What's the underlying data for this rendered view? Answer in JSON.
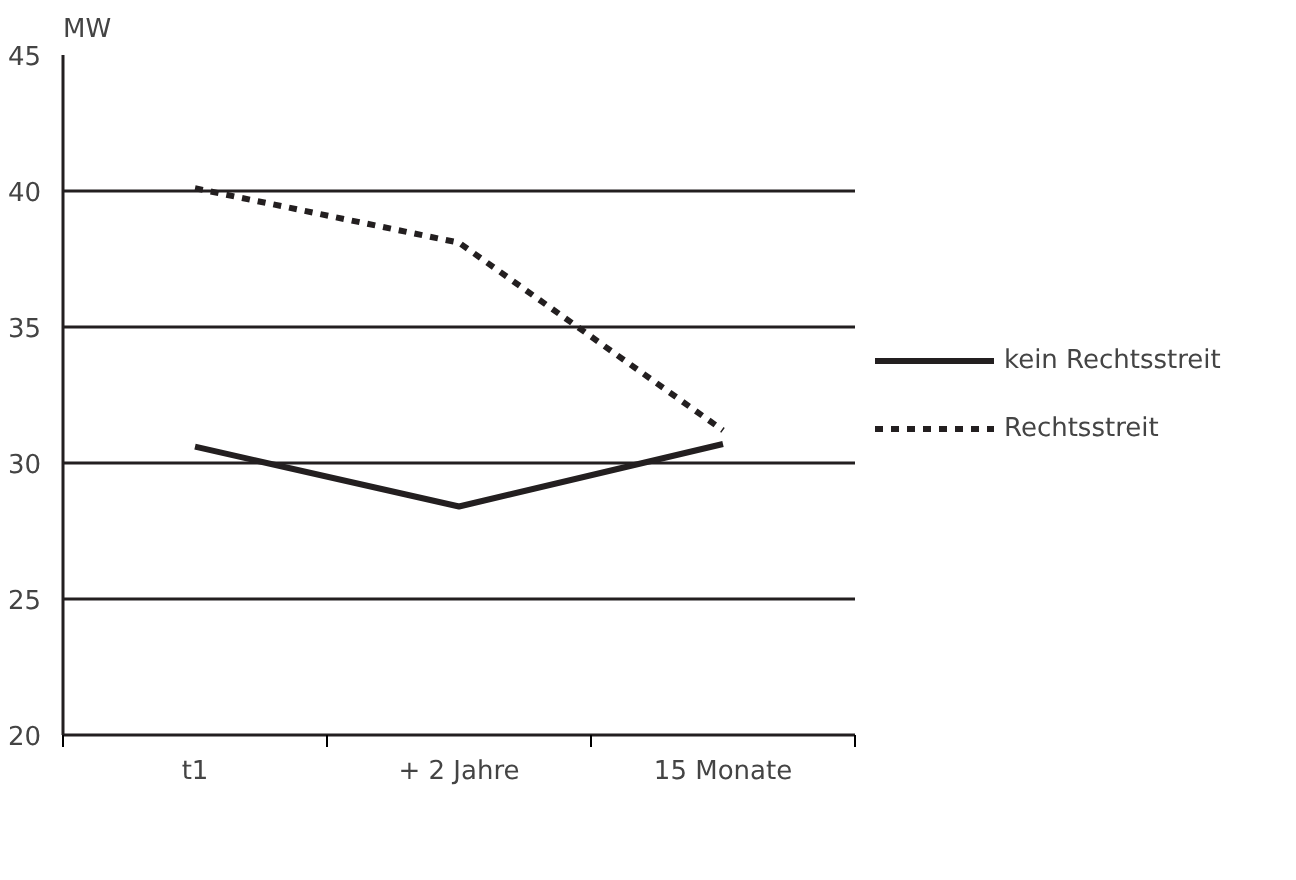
{
  "chart_data": {
    "type": "line",
    "ylabel": "MW",
    "categories": [
      "t1",
      "+ 2 Jahre",
      "15 Monate"
    ],
    "series": [
      {
        "name": "kein Rechtsstreit",
        "color": "#231f20",
        "line_style": "solid",
        "values": [
          30.6,
          28.4,
          30.7
        ]
      },
      {
        "name": "Rechtsstreit",
        "color": "#231f20",
        "line_style": "dashed",
        "values": [
          40.1,
          38.1,
          31.2
        ]
      }
    ],
    "ylim": [
      20,
      45
    ],
    "yticks": [
      20,
      25,
      30,
      35,
      40,
      45
    ],
    "grid": "y",
    "legend": "right",
    "marker": "none"
  }
}
